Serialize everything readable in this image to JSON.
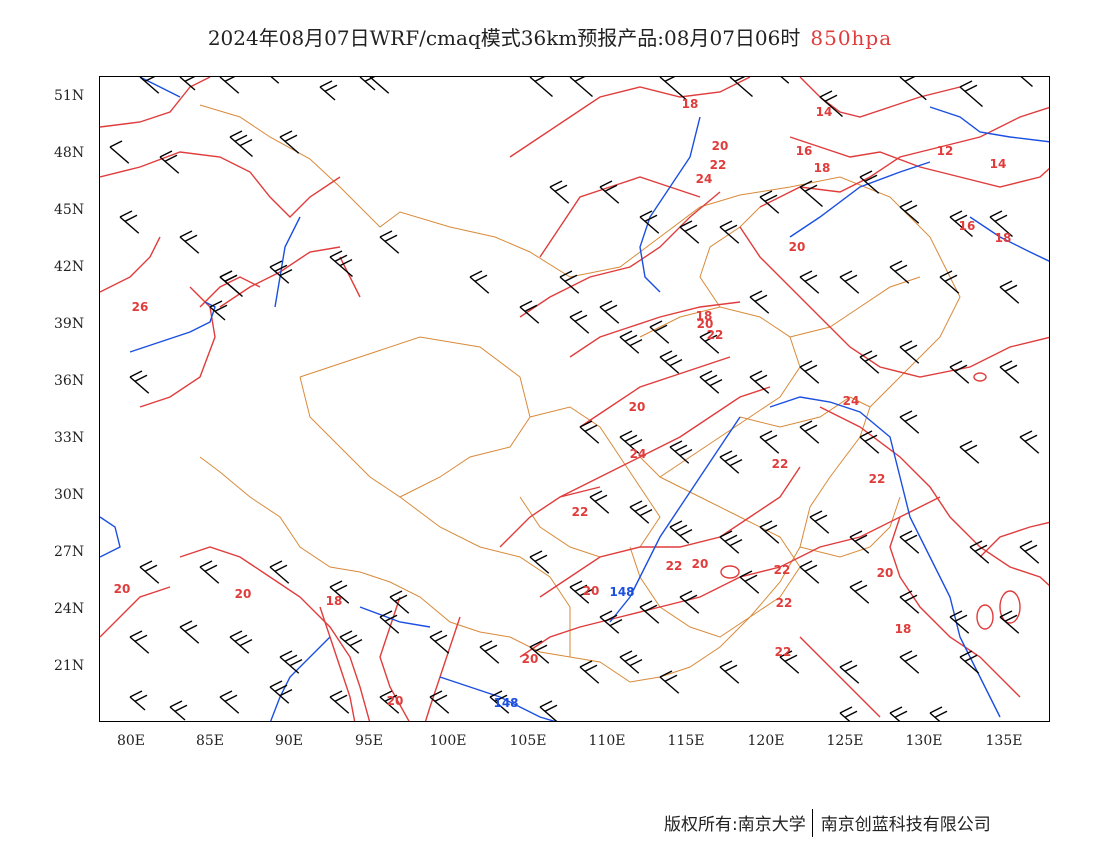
{
  "title": {
    "main": "2024年08月07日WRF/cmaq模式36km预报产品:08月07日06时",
    "level": "850hpa"
  },
  "colors": {
    "temperature": "#e03c3c",
    "geopotential": "#1a4fe0",
    "border": "#d98a3a",
    "wind": "#000000",
    "title_level": "#e03c3c"
  },
  "axes": {
    "lat_labels": [
      "51N",
      "48N",
      "45N",
      "42N",
      "39N",
      "36N",
      "33N",
      "30N",
      "27N",
      "24N",
      "21N"
    ],
    "lon_labels": [
      "80E",
      "85E",
      "90E",
      "95E",
      "100E",
      "105E",
      "110E",
      "115E",
      "120E",
      "125E",
      "130E",
      "135E"
    ]
  },
  "map": {
    "temperature_labels": [
      "18",
      "14",
      "20",
      "16",
      "22",
      "24",
      "18",
      "12",
      "14",
      "16",
      "18",
      "20",
      "26",
      "18",
      "20",
      "22",
      "20",
      "24",
      "22",
      "24",
      "22",
      "22",
      "22",
      "20",
      "22",
      "20",
      "20",
      "22",
      "20",
      "20",
      "18",
      "18",
      "22",
      "20",
      "20"
    ],
    "height_labels": [
      "148",
      "148"
    ],
    "wind_barbs": "icon"
  },
  "footer": {
    "left": "版权所有:南京大学",
    "right": "南京创蓝科技有限公司"
  }
}
